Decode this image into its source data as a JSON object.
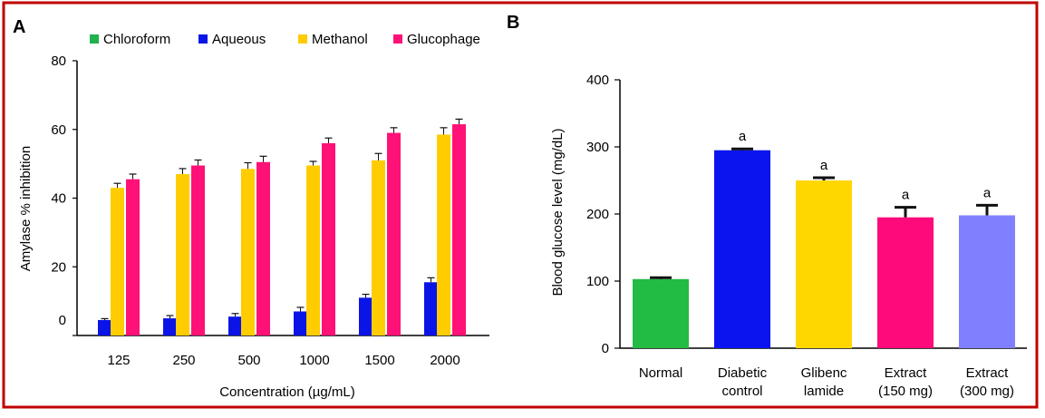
{
  "colors": {
    "border": "#c00000",
    "axis": "#000000",
    "chloroform": "#22b14c",
    "aqueous": "#0a14e6",
    "methanol": "#ffcc00",
    "glucophage": "#ff1177"
  },
  "chart_data": [
    {
      "panel_label": "A",
      "type": "bar",
      "xlabel": "Concentration (µg/mL)",
      "ylabel": "Amylase % inhibition",
      "ylim": [
        0,
        80
      ],
      "yticks": [
        "0",
        "20",
        "40",
        "60",
        "80"
      ],
      "legend_position": "top",
      "categories": [
        "125",
        "250",
        "500",
        "1000",
        "1500",
        "2000"
      ],
      "series": [
        {
          "name": "Chloroform",
          "color": "#22b14c",
          "values": [
            0,
            0,
            0,
            0,
            0,
            0
          ],
          "errors": [
            0,
            0,
            0,
            0,
            0,
            0
          ]
        },
        {
          "name": "Aqueous",
          "color": "#0a14e6",
          "values": [
            4.5,
            5,
            5.5,
            7,
            11,
            15.5
          ],
          "errors": [
            0.4,
            0.8,
            0.9,
            1.2,
            1.0,
            1.3
          ]
        },
        {
          "name": "Methanol",
          "color": "#ffcc00",
          "values": [
            43,
            47,
            48.5,
            49.5,
            51,
            58.5
          ],
          "errors": [
            1.3,
            1.6,
            1.8,
            1.2,
            2.0,
            2.0
          ]
        },
        {
          "name": "Glucophage",
          "color": "#ff1177",
          "values": [
            45.5,
            49.5,
            50.5,
            56,
            59,
            61.5
          ],
          "errors": [
            1.5,
            1.6,
            1.7,
            1.5,
            1.5,
            1.5
          ]
        }
      ]
    },
    {
      "panel_label": "B",
      "type": "bar",
      "xlabel": "",
      "ylabel": "Blood glucose level (mg/dL)",
      "ylim": [
        0,
        400
      ],
      "yticks": [
        "0",
        "100",
        "200",
        "300",
        "400"
      ],
      "categories": [
        [
          "Normal"
        ],
        [
          "Diabetic",
          "control"
        ],
        [
          "Glibenc",
          "lamide"
        ],
        [
          "Extract",
          "(150 mg)"
        ],
        [
          "Extract",
          "(300 mg)"
        ]
      ],
      "values": [
        103,
        295,
        250,
        195,
        198
      ],
      "errors": [
        2,
        2,
        4,
        15,
        15
      ],
      "colors": [
        "#22bb44",
        "#0a14ee",
        "#ffd700",
        "#ff0a7a",
        "#8080ff"
      ],
      "annotations": [
        "",
        "a",
        "a",
        "a",
        "a"
      ]
    }
  ]
}
